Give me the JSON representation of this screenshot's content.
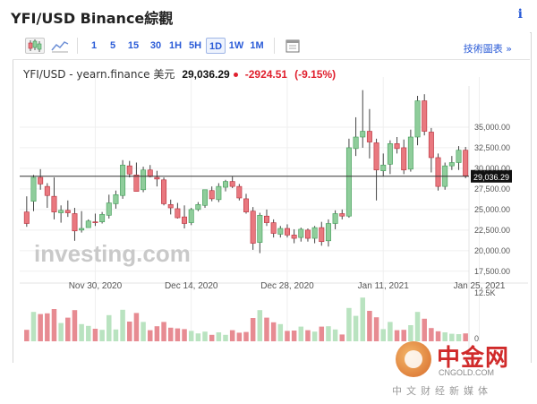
{
  "page": {
    "title": "YFI/USD Binance綜觀",
    "info_icon": "info-icon"
  },
  "toolbar": {
    "intervals": [
      "1",
      "5",
      "15",
      "30",
      "1H",
      "5H",
      "1D",
      "1W",
      "1M"
    ],
    "active_interval": "1D",
    "tech_chart_label": "技術圖表 »"
  },
  "quote": {
    "pair": "YFI/USD - yearn.finance 美元",
    "price": "29,036.29",
    "change": "-2924.51",
    "change_pct": "(-9.15%)"
  },
  "colors": {
    "up": "#8fcd9b",
    "up_border": "#3f9c56",
    "down": "#e9787f",
    "down_border": "#b82e3a",
    "accent": "#2a5bd7",
    "vol_up": "#b9e3c0",
    "vol_down": "#e78b92"
  },
  "watermark": {
    "brand": "中金网",
    "site": "CNGOLD.COM",
    "tagline": "中文财经新媒体",
    "logo_text": "investing.com"
  },
  "chart_data": {
    "type": "candlestick",
    "symbol": "YFI/USD",
    "interval": "1D",
    "last_price": 29036.29,
    "last_price_label": "29,036.29",
    "ylim": [
      16500,
      40000
    ],
    "y_ticks": [
      {
        "v": 35000,
        "label": "35,000.00"
      },
      {
        "v": 32500,
        "label": "32,500.00"
      },
      {
        "v": 30000,
        "label": "30,000.00"
      },
      {
        "v": 27500,
        "label": "27,500.00"
      },
      {
        "v": 25000,
        "label": "25,000.00"
      },
      {
        "v": 22500,
        "label": "22,500.00"
      },
      {
        "v": 20000,
        "label": "20,000.00"
      },
      {
        "v": 17500,
        "label": "17,500.00"
      }
    ],
    "x_ticks": [
      {
        "i": 10,
        "label": "Nov 30, 2020"
      },
      {
        "i": 24,
        "label": "Dec 14, 2020"
      },
      {
        "i": 38,
        "label": "Dec 28, 2020"
      },
      {
        "i": 52,
        "label": "Jan 11, 2021"
      },
      {
        "i": 66,
        "label": "Jan 25, 2021"
      }
    ],
    "volume_label": "12.5K",
    "volume_zero_label": "0",
    "ohlc": [
      [
        24700,
        26600,
        22900,
        23300
      ],
      [
        26000,
        29200,
        24800,
        28900
      ],
      [
        28900,
        29900,
        27400,
        28100
      ],
      [
        27800,
        28200,
        25200,
        26700
      ],
      [
        26600,
        28900,
        23800,
        24700
      ],
      [
        24600,
        25500,
        23400,
        24900
      ],
      [
        24900,
        26100,
        24100,
        24600
      ],
      [
        24500,
        25200,
        21200,
        22400
      ],
      [
        22500,
        24800,
        22200,
        22700
      ],
      [
        22800,
        23800,
        22900,
        23600
      ],
      [
        23500,
        24500,
        23000,
        23400
      ],
      [
        23500,
        24700,
        23300,
        24400
      ],
      [
        24300,
        26800,
        23900,
        25800
      ],
      [
        25700,
        27300,
        25100,
        26800
      ],
      [
        26700,
        31000,
        26300,
        30400
      ],
      [
        30300,
        30900,
        28900,
        29300
      ],
      [
        29200,
        30700,
        27200,
        27200
      ],
      [
        27400,
        30200,
        27100,
        29800
      ],
      [
        29800,
        30400,
        28900,
        29000
      ],
      [
        28900,
        29700,
        27800,
        28700
      ],
      [
        28600,
        28900,
        25500,
        25700
      ],
      [
        25600,
        26200,
        24400,
        25200
      ],
      [
        25100,
        25800,
        23900,
        24000
      ],
      [
        24100,
        25500,
        22700,
        23300
      ],
      [
        23400,
        25200,
        23100,
        25000
      ],
      [
        25000,
        25900,
        24800,
        25600
      ],
      [
        25500,
        27400,
        25200,
        27400
      ],
      [
        27300,
        27800,
        26000,
        26300
      ],
      [
        26200,
        28200,
        25900,
        27800
      ],
      [
        27700,
        28600,
        27200,
        28400
      ],
      [
        28400,
        29000,
        27600,
        27800
      ],
      [
        27800,
        28100,
        26100,
        26400
      ],
      [
        26300,
        26900,
        24500,
        24700
      ],
      [
        24800,
        25300,
        20100,
        20900
      ],
      [
        21000,
        24600,
        19700,
        24300
      ],
      [
        24200,
        25000,
        23000,
        23400
      ],
      [
        23400,
        23800,
        21600,
        22100
      ],
      [
        22000,
        23000,
        21600,
        22700
      ],
      [
        22700,
        23200,
        21600,
        21900
      ],
      [
        21900,
        22600,
        20900,
        21500
      ],
      [
        21600,
        22800,
        21100,
        22600
      ],
      [
        22500,
        22700,
        21100,
        21500
      ],
      [
        21500,
        23000,
        20900,
        22800
      ],
      [
        22800,
        23500,
        20600,
        21100
      ],
      [
        21200,
        23800,
        20500,
        23300
      ],
      [
        23300,
        24900,
        22600,
        24500
      ],
      [
        24500,
        25000,
        23800,
        24200
      ],
      [
        24200,
        33600,
        24000,
        32500
      ],
      [
        32400,
        36200,
        31500,
        33800
      ],
      [
        33800,
        39500,
        32500,
        34500
      ],
      [
        34500,
        37200,
        31200,
        33200
      ],
      [
        33100,
        33600,
        26100,
        29800
      ],
      [
        29700,
        31800,
        29000,
        30400
      ],
      [
        30500,
        33400,
        29300,
        33000
      ],
      [
        33000,
        33800,
        31800,
        32400
      ],
      [
        32500,
        33500,
        29300,
        29800
      ],
      [
        29900,
        34700,
        29600,
        33800
      ],
      [
        33800,
        38800,
        32800,
        38200
      ],
      [
        38200,
        39000,
        34000,
        34500
      ],
      [
        34400,
        34900,
        29500,
        31300
      ],
      [
        31300,
        31800,
        27300,
        27800
      ],
      [
        27800,
        30700,
        27400,
        30300
      ],
      [
        30300,
        31500,
        29800,
        30700
      ],
      [
        30700,
        32700,
        29800,
        32200
      ],
      [
        32200,
        32600,
        28800,
        29100
      ]
    ],
    "volume": [
      3200,
      8200,
      7600,
      7800,
      9000,
      5100,
      6600,
      8700,
      4800,
      4300,
      3500,
      3200,
      7300,
      3300,
      8800,
      5500,
      7900,
      5400,
      3100,
      4200,
      5400,
      3800,
      3600,
      3400,
      2900,
      2200,
      2700,
      1800,
      2500,
      1800,
      3100,
      2400,
      2600,
      6500,
      8700,
      6600,
      5300,
      4800,
      2900,
      3000,
      4100,
      3100,
      2700,
      4100,
      4200,
      3300,
      1900,
      9300,
      7100,
      12200,
      8500,
      6700,
      3400,
      5400,
      3100,
      3200,
      4500,
      8200,
      6300,
      3700,
      2800,
      2500,
      2100,
      2000,
      2200
    ]
  }
}
